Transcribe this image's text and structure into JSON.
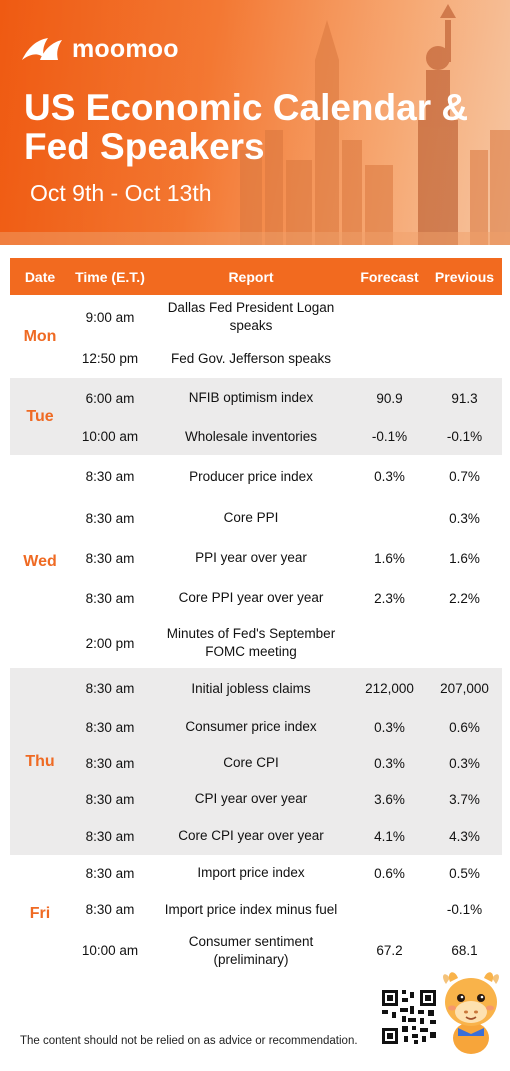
{
  "header": {
    "logo_text": "moomoo",
    "title_line1": "US Economic Calendar &",
    "title_line2": "Fed Speakers",
    "date_range": "Oct 9th - Oct 13th"
  },
  "table": {
    "columns": [
      "Date",
      "Time (E.T.)",
      "Report",
      "Forecast",
      "Previous"
    ],
    "days": [
      {
        "day": "Mon",
        "rows": [
          {
            "time": "9:00 am",
            "report": "Dallas Fed President Logan speaks",
            "forecast": "",
            "previous": ""
          },
          {
            "time": "12:50 pm",
            "report": "Fed Gov. Jefferson speaks",
            "forecast": "",
            "previous": ""
          }
        ]
      },
      {
        "day": "Tue",
        "rows": [
          {
            "time": "6:00 am",
            "report": "NFIB optimism index",
            "forecast": "90.9",
            "previous": "91.3"
          },
          {
            "time": "10:00 am",
            "report": "Wholesale inventories",
            "forecast": "-0.1%",
            "previous": "-0.1%"
          }
        ]
      },
      {
        "day": "Wed",
        "rows": [
          {
            "time": "8:30 am",
            "report": "Producer price index",
            "forecast": "0.3%",
            "previous": "0.7%"
          },
          {
            "time": "8:30 am",
            "report": "Core PPI",
            "forecast": "",
            "previous": "0.3%"
          },
          {
            "time": "8:30 am",
            "report": "PPI year over year",
            "forecast": "1.6%",
            "previous": "1.6%"
          },
          {
            "time": "8:30 am",
            "report": "Core PPI year over year",
            "forecast": "2.3%",
            "previous": "2.2%"
          },
          {
            "time": "2:00 pm",
            "report": "Minutes of Fed's September FOMC meeting",
            "forecast": "",
            "previous": ""
          }
        ]
      },
      {
        "day": "Thu",
        "rows": [
          {
            "time": "8:30 am",
            "report": "Initial jobless claims",
            "forecast": "212,000",
            "previous": "207,000"
          },
          {
            "time": "8:30 am",
            "report": "Consumer price index",
            "forecast": "0.3%",
            "previous": "0.6%"
          },
          {
            "time": "8:30 am",
            "report": "Core CPI",
            "forecast": "0.3%",
            "previous": "0.3%"
          },
          {
            "time": "8:30 am",
            "report": "CPI year over year",
            "forecast": "3.6%",
            "previous": "3.7%"
          },
          {
            "time": "8:30 am",
            "report": "Core CPI year over year",
            "forecast": "4.1%",
            "previous": "4.3%"
          }
        ]
      },
      {
        "day": "Fri",
        "rows": [
          {
            "time": "8:30 am",
            "report": "Import price index",
            "forecast": "0.6%",
            "previous": "0.5%"
          },
          {
            "time": "8:30 am",
            "report": "Import price index minus fuel",
            "forecast": "",
            "previous": "-0.1%"
          },
          {
            "time": "10:00 am",
            "report": "Consumer sentiment (preliminary)",
            "forecast": "67.2",
            "previous": "68.1"
          }
        ]
      }
    ]
  },
  "footer": {
    "disclaimer": "The content should not be relied on as advice or recommendation."
  },
  "colors": {
    "accent": "#f26a1f",
    "day_label": "#ef6a23",
    "shade_row": "#ecebeb"
  },
  "icons": [
    "moomoo-logo-icon",
    "qr-code-icon",
    "mascot-icon"
  ]
}
